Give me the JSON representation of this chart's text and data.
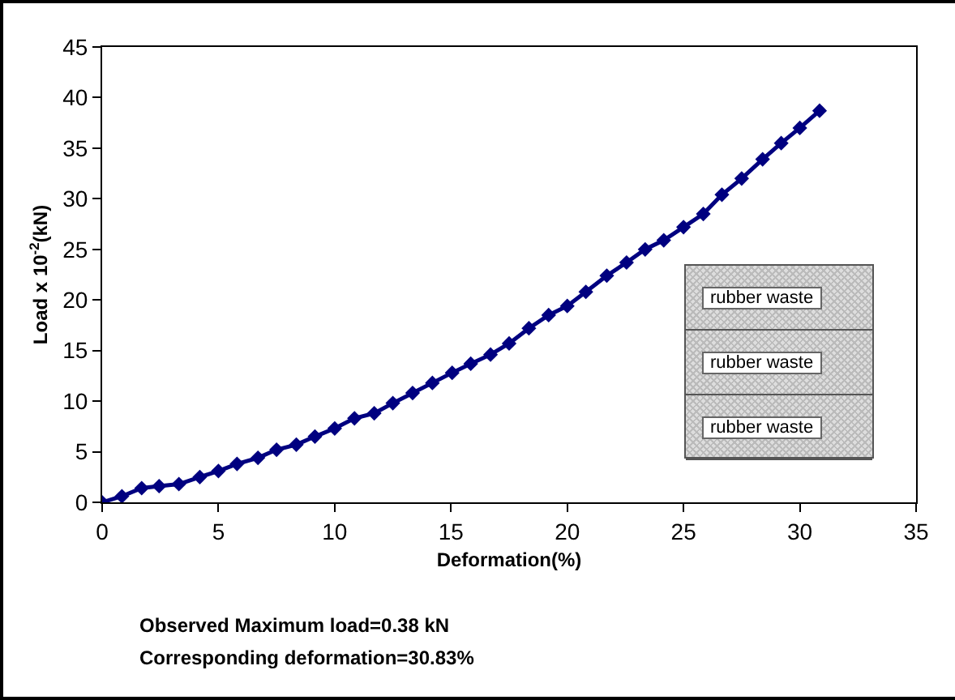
{
  "chart_data": {
    "type": "line",
    "xlabel": "Deformation(%)",
    "ylabel": "Load x 10$^{-2}$(kN)",
    "x": [
      0,
      0.85,
      1.7,
      2.45,
      3.3,
      4.2,
      5.0,
      5.8,
      6.7,
      7.5,
      8.35,
      9.15,
      10.0,
      10.85,
      11.7,
      12.5,
      13.35,
      14.2,
      15.05,
      15.85,
      16.7,
      17.5,
      18.35,
      19.2,
      20.0,
      20.8,
      21.7,
      22.55,
      23.35,
      24.15,
      25.0,
      25.85,
      26.65,
      27.5,
      28.4,
      29.2,
      30.0,
      30.85
    ],
    "series": [
      {
        "color": "#000080",
        "values": [
          0,
          0.6,
          1.4,
          1.6,
          1.8,
          2.5,
          3.1,
          3.8,
          4.4,
          5.2,
          5.7,
          6.5,
          7.3,
          8.3,
          8.8,
          9.8,
          10.8,
          11.8,
          12.8,
          13.7,
          14.6,
          15.7,
          17.2,
          18.5,
          19.4,
          20.8,
          22.4,
          23.7,
          25.0,
          25.9,
          27.2,
          28.5,
          30.4,
          32.0,
          33.9,
          35.5,
          37.0,
          38.7
        ]
      }
    ],
    "xlim": [
      0,
      35
    ],
    "xticks": [
      0,
      5,
      10,
      15,
      20,
      25,
      30,
      35
    ],
    "ylim": [
      0,
      45
    ],
    "yticks": [
      0,
      5,
      10,
      15,
      20,
      25,
      30,
      35,
      40,
      45
    ],
    "grid": false,
    "marker": "diamond",
    "line_style": "solid",
    "annotations": [
      "Observed Maximum load=0.38 kN",
      "Corresponding deformation=30.83%",
      "rubber waste",
      "rubber waste",
      "rubber waste"
    ]
  }
}
